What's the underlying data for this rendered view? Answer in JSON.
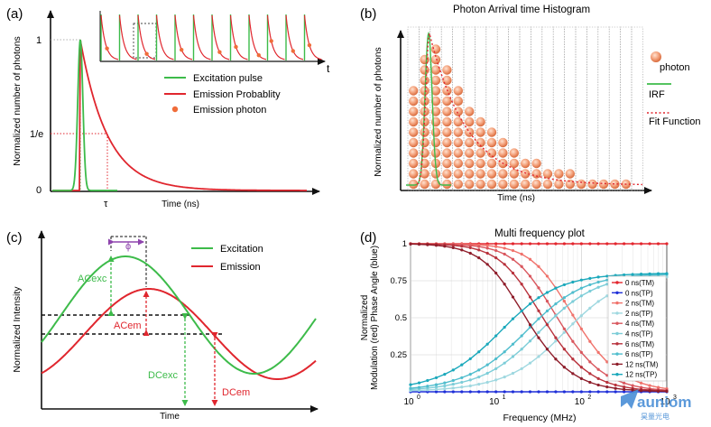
{
  "panels": {
    "a": {
      "letter": "(a)",
      "y_axis": "Normalized number of photons",
      "x_axis": "Time (ns)",
      "tick_one": "1",
      "tick_1e": "1/e",
      "tick_zero": "0",
      "tau": "τ",
      "inset_time": "t",
      "legend": [
        "Excitation pulse",
        "Emission Probablity",
        "Emission photon"
      ]
    },
    "b": {
      "letter": "(b)",
      "title": "Photon Arrival time Histogram",
      "y_axis": "Normalized number of photons",
      "x_axis": "Time (ns)",
      "legend": [
        "photon",
        "IRF",
        "Fit Function"
      ]
    },
    "c": {
      "letter": "(c)",
      "y_axis": "Normalized Intensity",
      "x_axis": "Time",
      "phi": "ϕ",
      "legend": [
        "Excitation",
        "Emission"
      ],
      "labels": {
        "ac_exc": "ACexc",
        "ac_em": "ACem",
        "dc_exc": "DCexc",
        "dc_em": "DCem"
      }
    },
    "d": {
      "letter": "(d)"
    }
  },
  "colors": {
    "excitation": "#3dbb4a",
    "emission": "#e0262e",
    "photon": "#f06d3a",
    "phi": "#8e44ad"
  },
  "chart_data": {
    "type": "line",
    "title": "Multi frequency plot",
    "xlabel": "Frequency (MHz)",
    "ylabel": "Normalized Modulation (red) Phase Angle (blue)",
    "x_scale": "log",
    "xlim": [
      1,
      1000
    ],
    "ylim": [
      0,
      1
    ],
    "y_ticks": [
      "0.25",
      "0.5",
      "0.75",
      "1"
    ],
    "x_ticks": [
      {
        "base": "10",
        "exp": "0"
      },
      {
        "base": "10",
        "exp": "1"
      },
      {
        "base": "10",
        "exp": "2"
      },
      {
        "base": "10",
        "exp": "3"
      }
    ],
    "x": [
      1,
      1.26,
      1.58,
      2,
      2.51,
      3.16,
      3.98,
      5.01,
      6.31,
      7.94,
      10,
      12.6,
      15.8,
      20,
      25.1,
      31.6,
      39.8,
      50.1,
      63.1,
      79.4,
      100,
      126,
      158,
      200,
      251,
      316,
      398,
      501,
      631,
      794,
      1000
    ],
    "series": [
      {
        "name": "0 ns(TM)",
        "color": "#e3262e",
        "values": [
          1,
          1,
          1,
          1,
          1,
          1,
          1,
          1,
          1,
          1,
          1,
          1,
          1,
          1,
          1,
          1,
          1,
          1,
          1,
          1,
          1,
          1,
          1,
          1,
          1,
          1,
          1,
          1,
          1,
          1,
          1
        ]
      },
      {
        "name": "0 ns(TP)",
        "color": "#1f2fd8",
        "values": [
          0,
          0,
          0,
          0,
          0,
          0,
          0,
          0,
          0,
          0,
          0,
          0,
          0,
          0,
          0,
          0,
          0,
          0,
          0,
          0,
          0,
          0,
          0,
          0,
          0,
          0,
          0,
          0,
          0,
          0,
          0
        ]
      },
      {
        "name": "2 ns(TM)",
        "color": "#f0726b",
        "values": [
          1,
          1,
          1,
          1,
          0.999,
          0.998,
          0.997,
          0.995,
          0.992,
          0.988,
          0.981,
          0.97,
          0.954,
          0.93,
          0.895,
          0.846,
          0.781,
          0.702,
          0.612,
          0.518,
          0.425,
          0.34,
          0.266,
          0.202,
          0.151,
          0.111,
          0.081,
          0.059,
          0.042,
          0.03,
          0.021
        ]
      },
      {
        "name": "2 ns(TP)",
        "color": "#9fd8e0",
        "values": [
          0.008,
          0.01,
          0.013,
          0.016,
          0.02,
          0.025,
          0.032,
          0.04,
          0.051,
          0.064,
          0.08,
          0.1,
          0.125,
          0.156,
          0.194,
          0.238,
          0.288,
          0.343,
          0.401,
          0.459,
          0.514,
          0.565,
          0.61,
          0.648,
          0.68,
          0.706,
          0.727,
          0.744,
          0.757,
          0.768,
          0.776
        ]
      },
      {
        "name": "4 ns(TM)",
        "color": "#d9575e",
        "values": [
          1,
          1,
          0.999,
          0.998,
          0.997,
          0.995,
          0.992,
          0.988,
          0.981,
          0.97,
          0.954,
          0.93,
          0.895,
          0.846,
          0.781,
          0.702,
          0.612,
          0.518,
          0.425,
          0.34,
          0.266,
          0.202,
          0.151,
          0.111,
          0.081,
          0.059,
          0.042,
          0.03,
          0.021,
          0.015,
          0.011
        ]
      },
      {
        "name": "4 ns(TP)",
        "color": "#7dcdd8",
        "values": [
          0.016,
          0.02,
          0.025,
          0.032,
          0.04,
          0.051,
          0.064,
          0.08,
          0.1,
          0.125,
          0.156,
          0.194,
          0.238,
          0.288,
          0.343,
          0.401,
          0.459,
          0.514,
          0.565,
          0.61,
          0.648,
          0.68,
          0.706,
          0.727,
          0.744,
          0.757,
          0.768,
          0.776,
          0.782,
          0.787,
          0.791
        ]
      },
      {
        "name": "6 ns(TM)",
        "color": "#b8323c",
        "values": [
          1,
          0.999,
          0.998,
          0.996,
          0.993,
          0.989,
          0.983,
          0.973,
          0.958,
          0.936,
          0.905,
          0.861,
          0.802,
          0.727,
          0.64,
          0.547,
          0.453,
          0.365,
          0.288,
          0.221,
          0.166,
          0.123,
          0.089,
          0.064,
          0.046,
          0.033,
          0.023,
          0.016,
          0.012,
          0.008,
          0.006
        ]
      },
      {
        "name": "6 ns(TP)",
        "color": "#4fbdcd",
        "values": [
          0.024,
          0.03,
          0.038,
          0.048,
          0.06,
          0.076,
          0.095,
          0.118,
          0.147,
          0.182,
          0.223,
          0.27,
          0.322,
          0.378,
          0.436,
          0.493,
          0.546,
          0.594,
          0.636,
          0.671,
          0.7,
          0.723,
          0.741,
          0.755,
          0.766,
          0.775,
          0.781,
          0.786,
          0.79,
          0.793,
          0.795
        ]
      },
      {
        "name": "12 ns(TM)",
        "color": "#8e1d2a",
        "values": [
          0.998,
          0.996,
          0.993,
          0.989,
          0.983,
          0.973,
          0.958,
          0.936,
          0.905,
          0.861,
          0.802,
          0.727,
          0.64,
          0.547,
          0.453,
          0.365,
          0.288,
          0.221,
          0.166,
          0.123,
          0.089,
          0.064,
          0.046,
          0.033,
          0.023,
          0.016,
          0.012,
          0.008,
          0.006,
          0.004,
          0.003
        ]
      },
      {
        "name": "12 ns(TP)",
        "color": "#1aa8bb",
        "values": [
          0.048,
          0.06,
          0.076,
          0.095,
          0.118,
          0.147,
          0.182,
          0.223,
          0.27,
          0.322,
          0.378,
          0.436,
          0.493,
          0.546,
          0.594,
          0.636,
          0.671,
          0.7,
          0.723,
          0.741,
          0.755,
          0.766,
          0.775,
          0.781,
          0.786,
          0.79,
          0.793,
          0.795,
          0.797,
          0.798,
          0.799
        ]
      }
    ]
  },
  "watermark": {
    "text": "auniom",
    "sub": "昊量光电"
  }
}
